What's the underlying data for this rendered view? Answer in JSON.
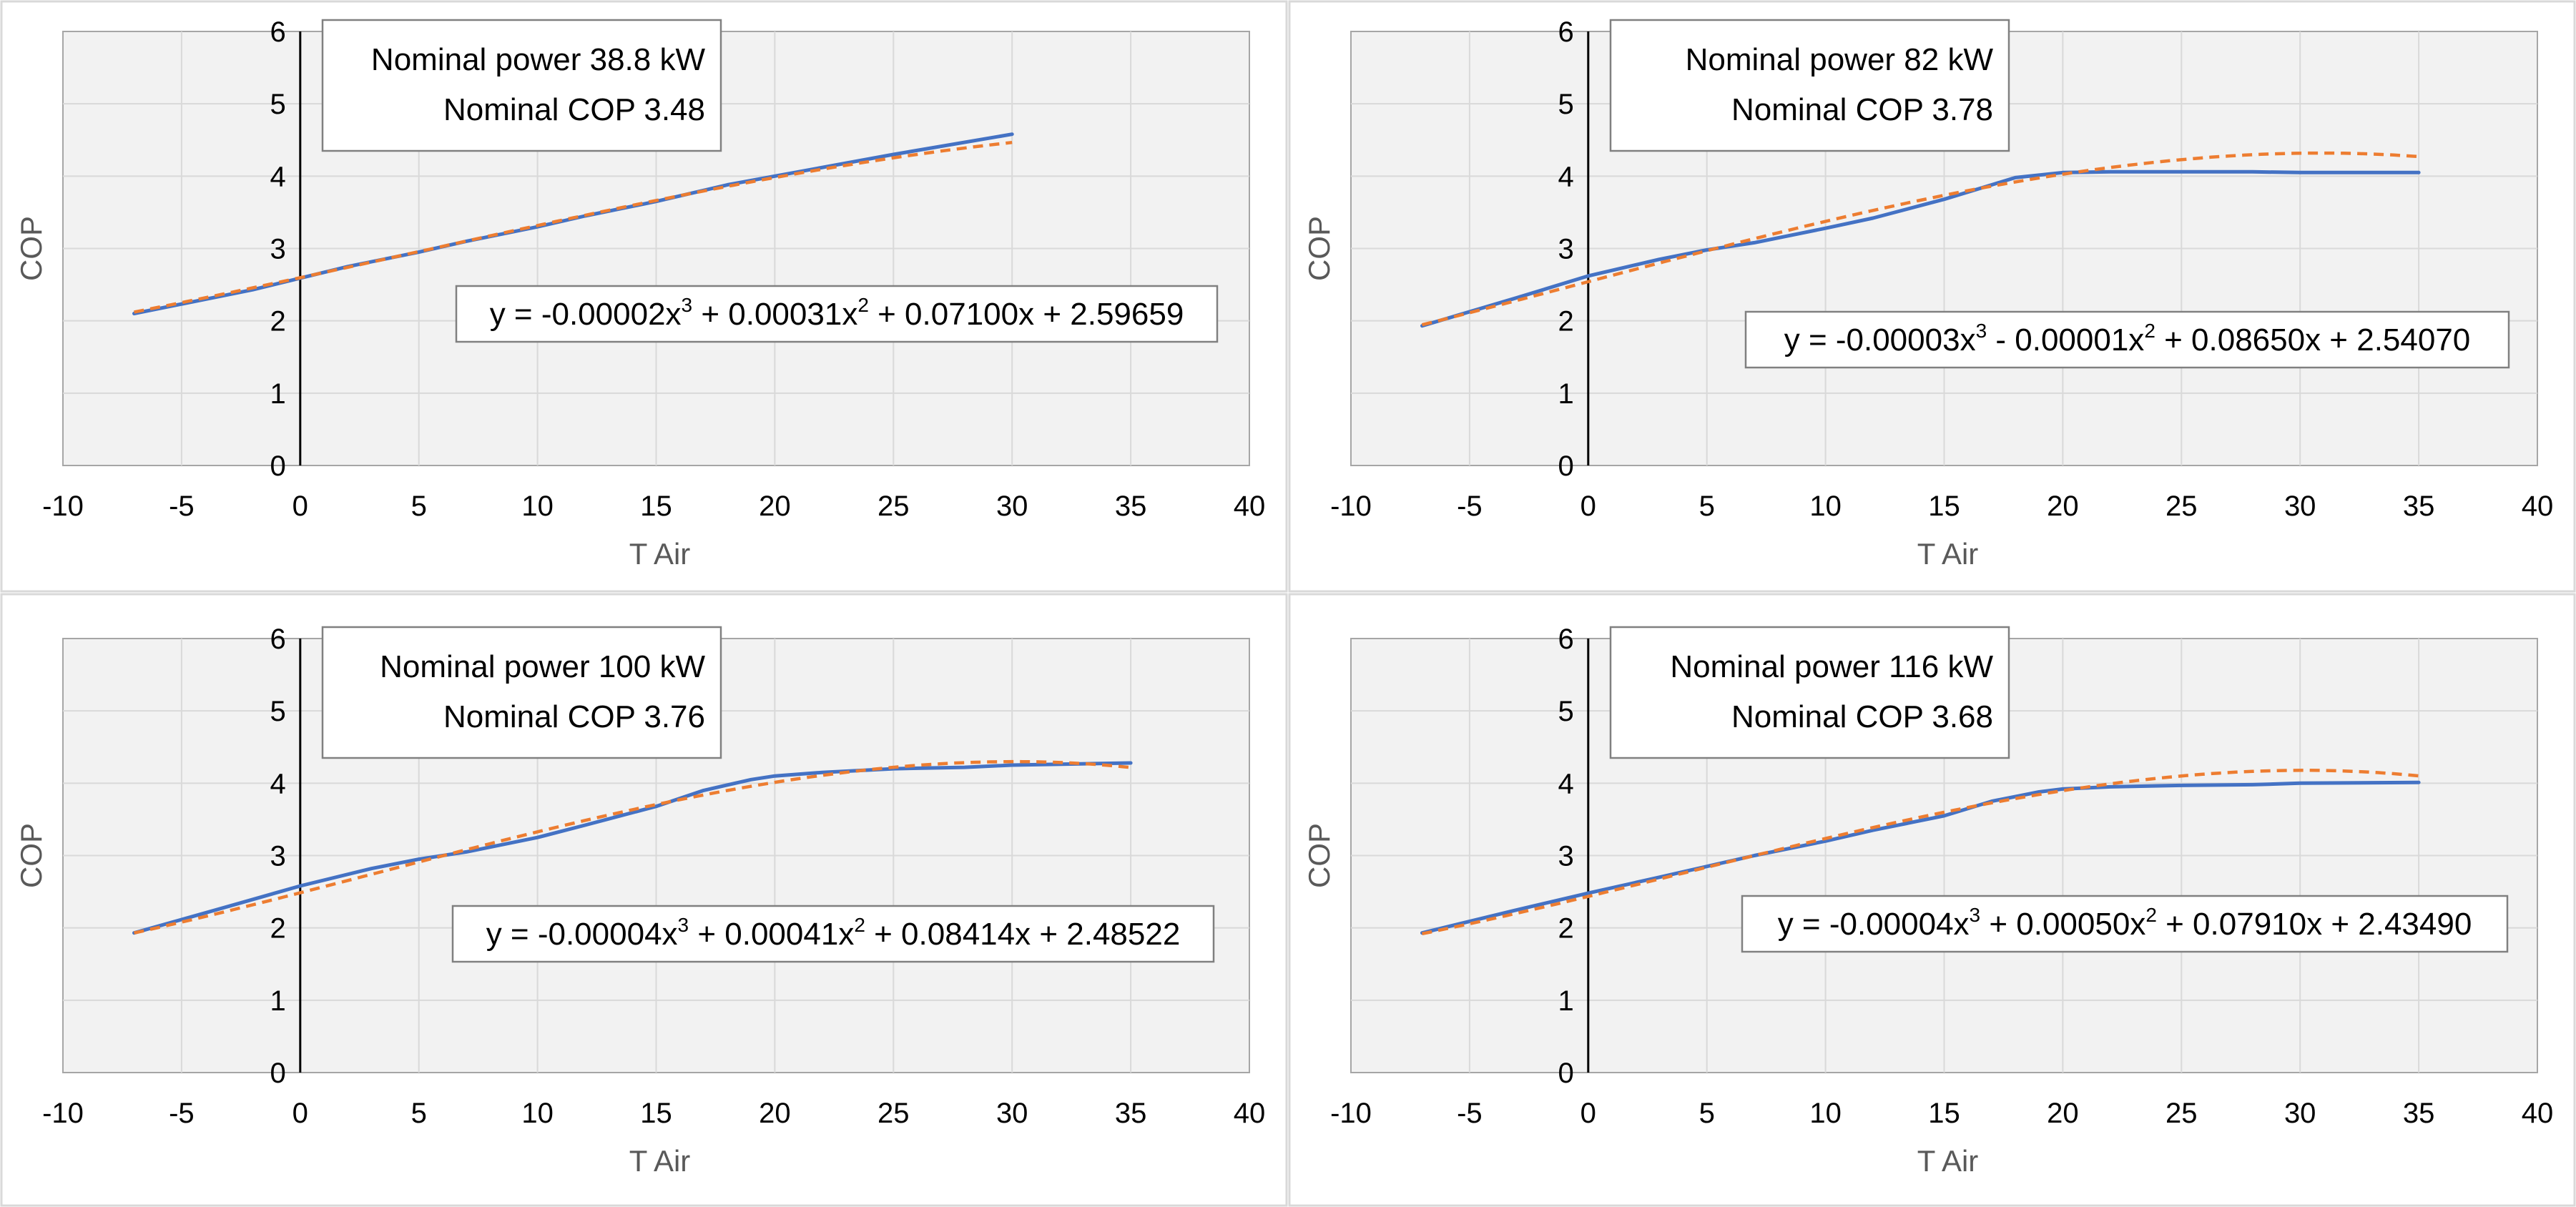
{
  "colors": {
    "actual": "#4472c4",
    "fit": "#ed7d31"
  },
  "chart_data": [
    {
      "type": "line",
      "xlabel": "T Air",
      "ylabel": "COP",
      "xlim": [
        -10,
        40
      ],
      "ylim": [
        0,
        6
      ],
      "xticks": [
        "-10",
        "-5",
        "0",
        "5",
        "10",
        "15",
        "20",
        "25",
        "30",
        "35",
        "40"
      ],
      "yticks": [
        "0",
        "1",
        "2",
        "3",
        "4",
        "5",
        "6"
      ],
      "info_line1": "Nominal power 38.8 kW",
      "info_line2": "Nominal COP 3.48",
      "equation": {
        "p1": "y = -0.00002x",
        "e1": "3",
        "p2": " + 0.00031x",
        "e2": "2",
        "p3": " + 0.07100x + 2.59659"
      },
      "coefficients": [
        -2e-05,
        0.00031,
        0.071,
        2.59659
      ],
      "series": [
        {
          "name": "COP",
          "style": "solid",
          "x": [
            -7,
            -2,
            2,
            5,
            7,
            10,
            12,
            15,
            18,
            20,
            25,
            30
          ],
          "y": [
            2.1,
            2.43,
            2.75,
            2.95,
            3.1,
            3.3,
            3.45,
            3.65,
            3.88,
            4.0,
            4.3,
            4.58
          ]
        },
        {
          "name": "Poly. fit",
          "style": "dashed",
          "x_range": [
            -7,
            30
          ]
        }
      ]
    },
    {
      "type": "line",
      "xlabel": "T Air",
      "ylabel": "COP",
      "xlim": [
        -10,
        40
      ],
      "ylim": [
        0,
        6
      ],
      "xticks": [
        "-10",
        "-5",
        "0",
        "5",
        "10",
        "15",
        "20",
        "25",
        "30",
        "35",
        "40"
      ],
      "yticks": [
        "0",
        "1",
        "2",
        "3",
        "4",
        "5",
        "6"
      ],
      "info_line1": "Nominal power 82 kW",
      "info_line2": "Nominal COP 3.78",
      "equation": {
        "p1": "y = -0.00003x",
        "e1": "3",
        "p2": " - 0.00001x",
        "e2": "2",
        "p3": " + 0.08650x + 2.54070"
      },
      "coefficients": [
        -3e-05,
        -1e-05,
        0.0865,
        2.5407
      ],
      "series": [
        {
          "name": "COP",
          "style": "solid",
          "x": [
            -7,
            -3,
            0,
            3,
            5,
            7,
            10,
            12,
            15,
            17,
            18,
            20,
            22,
            25,
            28,
            30,
            35
          ],
          "y": [
            1.93,
            2.32,
            2.62,
            2.85,
            2.98,
            3.08,
            3.28,
            3.42,
            3.68,
            3.88,
            3.98,
            4.05,
            4.06,
            4.06,
            4.06,
            4.05,
            4.05
          ]
        },
        {
          "name": "Poly. fit",
          "style": "dashed",
          "x_range": [
            -7,
            35
          ]
        }
      ]
    },
    {
      "type": "line",
      "xlabel": "T Air",
      "ylabel": "COP",
      "xlim": [
        -10,
        40
      ],
      "ylim": [
        0,
        6
      ],
      "xticks": [
        "-10",
        "-5",
        "0",
        "5",
        "10",
        "15",
        "20",
        "25",
        "30",
        "35",
        "40"
      ],
      "yticks": [
        "0",
        "1",
        "2",
        "3",
        "4",
        "5",
        "6"
      ],
      "info_line1": "Nominal power 100 kW",
      "info_line2": "Nominal COP 3.76",
      "equation": {
        "p1": "y = -0.00004x",
        "e1": "3",
        "p2": " + 0.00041x",
        "e2": "2",
        "p3": " + 0.08414x + 2.48522"
      },
      "coefficients": [
        -4e-05,
        0.00041,
        0.08414,
        2.48522
      ],
      "series": [
        {
          "name": "COP",
          "style": "solid",
          "x": [
            -7,
            -3,
            0,
            3,
            5,
            7,
            10,
            12,
            15,
            17,
            19,
            20,
            22,
            25,
            28,
            30,
            35
          ],
          "y": [
            1.93,
            2.3,
            2.58,
            2.82,
            2.95,
            3.05,
            3.25,
            3.42,
            3.68,
            3.9,
            4.05,
            4.1,
            4.15,
            4.2,
            4.22,
            4.25,
            4.28
          ]
        },
        {
          "name": "Poly. fit",
          "style": "dashed",
          "x_range": [
            -7,
            35
          ]
        }
      ]
    },
    {
      "type": "line",
      "xlabel": "T Air",
      "ylabel": "COP",
      "xlim": [
        -10,
        40
      ],
      "ylim": [
        0,
        6
      ],
      "xticks": [
        "-10",
        "-5",
        "0",
        "5",
        "10",
        "15",
        "20",
        "25",
        "30",
        "35",
        "40"
      ],
      "yticks": [
        "0",
        "1",
        "2",
        "3",
        "4",
        "5",
        "6"
      ],
      "info_line1": "Nominal power 116 kW",
      "info_line2": "Nominal COP 3.68",
      "equation": {
        "p1": "y = -0.00004x",
        "e1": "3",
        "p2": " + 0.00050x",
        "e2": "2",
        "p3": " + 0.07910x + 2.43490"
      },
      "coefficients": [
        -4e-05,
        0.0005,
        0.0791,
        2.4349
      ],
      "series": [
        {
          "name": "COP",
          "style": "solid",
          "x": [
            -7,
            -3,
            0,
            3,
            5,
            7,
            10,
            12,
            15,
            17,
            19,
            20,
            22,
            25,
            28,
            30,
            35
          ],
          "y": [
            1.93,
            2.25,
            2.48,
            2.7,
            2.85,
            3.0,
            3.2,
            3.35,
            3.55,
            3.75,
            3.88,
            3.92,
            3.95,
            3.97,
            3.98,
            4.0,
            4.01
          ]
        },
        {
          "name": "Poly. fit",
          "style": "dashed",
          "x_range": [
            -7,
            35
          ]
        }
      ]
    }
  ]
}
